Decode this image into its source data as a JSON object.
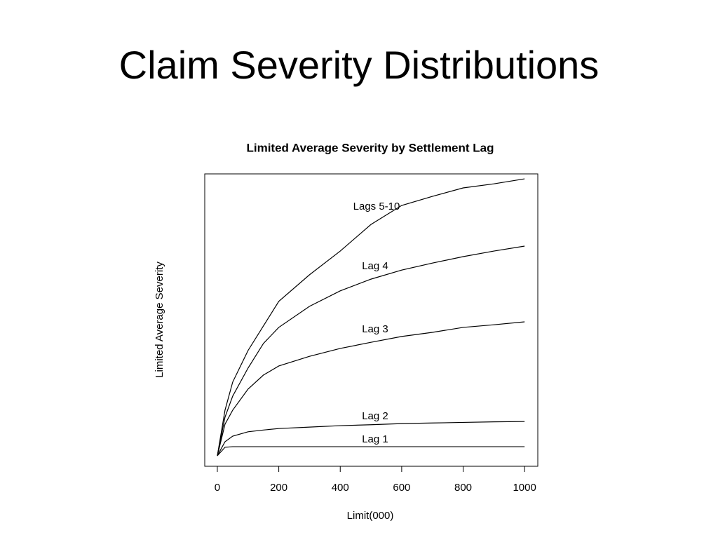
{
  "slide_title": "Claim Severity Distributions",
  "chart_data": {
    "type": "line",
    "title": "Limited Average Severity by Settlement Lag",
    "xlabel": "Limit(000)",
    "ylabel": "Limited Average Severity",
    "x": [
      0,
      25,
      50,
      100,
      150,
      200,
      300,
      400,
      500,
      600,
      700,
      800,
      900,
      1000
    ],
    "xlim": [
      -41,
      1043
    ],
    "xticks": [
      0,
      200,
      400,
      600,
      800,
      1000
    ],
    "ylim": [
      0,
      100
    ],
    "series": [
      {
        "name": "Lags 5-10",
        "color": "#000000",
        "values": [
          3.6,
          19.2,
          28.8,
          39.6,
          48,
          56.4,
          65.5,
          73.6,
          82.7,
          89.2,
          92.3,
          95.2,
          96.6,
          98.3
        ]
      },
      {
        "name": "Lag 4",
        "color": "#000000",
        "values": [
          3.6,
          16.8,
          24,
          33.6,
          42,
          47.5,
          54.7,
          60,
          64,
          67.1,
          69.5,
          71.7,
          73.6,
          75.3
        ]
      },
      {
        "name": "Lag 3",
        "color": "#000000",
        "values": [
          3.6,
          14.4,
          19.2,
          26.4,
          31.2,
          34.3,
          37.6,
          40.3,
          42.4,
          44.4,
          45.8,
          47.5,
          48.4,
          49.4
        ]
      },
      {
        "name": "Lag 2",
        "color": "#000000",
        "values": [
          3.6,
          8.4,
          10.3,
          11.8,
          12.4,
          12.9,
          13.4,
          13.9,
          14.2,
          14.6,
          14.8,
          15,
          15.2,
          15.3
        ]
      },
      {
        "name": "Lag 1",
        "color": "#000000",
        "values": [
          3.6,
          6.5,
          6.7,
          6.7,
          6.7,
          6.7,
          6.7,
          6.7,
          6.7,
          6.7,
          6.7,
          6.7,
          6.7,
          6.7
        ]
      }
    ]
  }
}
